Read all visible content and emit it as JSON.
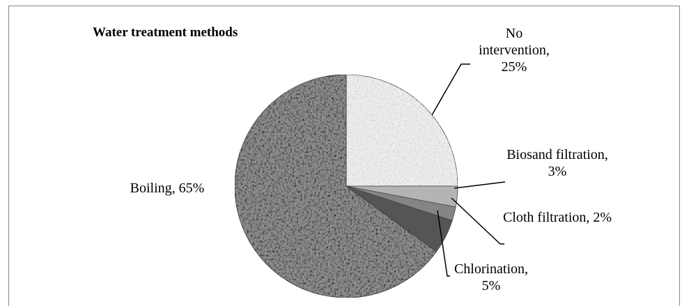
{
  "chart_data": {
    "type": "pie",
    "title": "Water treatment methods",
    "labels": [
      "No intervention, 25%",
      "Biosand filtration, 3%",
      "Cloth filtration, 2%",
      "Chlorination, 5%",
      "Boiling, 65%"
    ],
    "values": [
      25,
      3,
      2,
      5,
      65
    ],
    "colors": [
      "#ececec",
      "#b4b4b4",
      "#858585",
      "#555555",
      "#8e8e8e"
    ]
  }
}
